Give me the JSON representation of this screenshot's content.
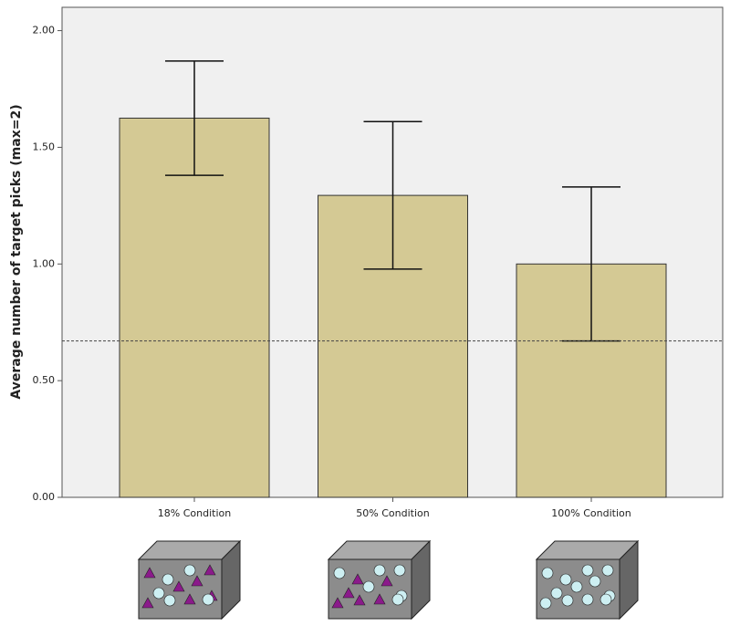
{
  "chart_data": {
    "type": "bar",
    "y_label": "Average number of target picks (max=2)",
    "categories": [
      "18% Condition",
      "50% Condition",
      "100% Condition"
    ],
    "values": [
      1.625,
      1.294,
      1.0
    ],
    "errors": [
      0.245,
      0.316,
      0.33
    ],
    "color": "#d4c994",
    "reference_line": 0.67,
    "ylim": [
      0,
      2.1
    ],
    "yticks": [
      {
        "value": 0,
        "label": "0.00"
      },
      {
        "value": 0.5,
        "label": "0.50"
      },
      {
        "value": 1,
        "label": "1.00"
      },
      {
        "value": 1.5,
        "label": "1.50"
      },
      {
        "value": 2,
        "label": "2.00"
      }
    ]
  }
}
